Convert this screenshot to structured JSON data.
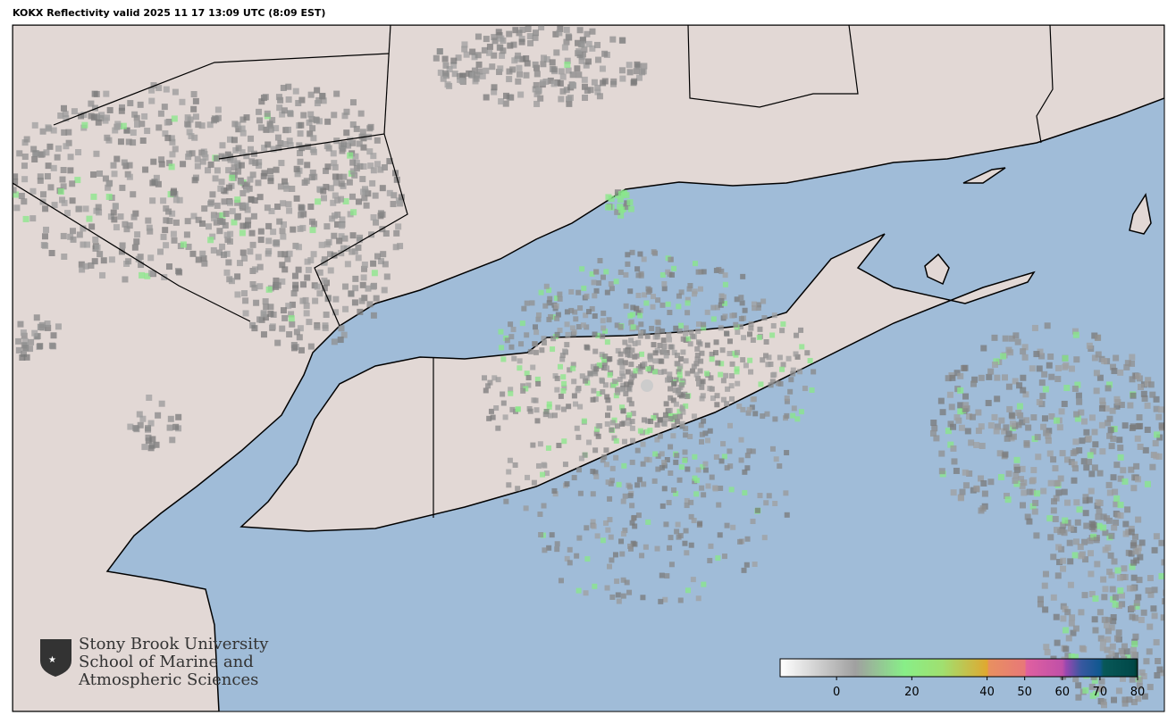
{
  "title": "KOKX Reflectivity valid 2025 11 17 13:09 UTC (8:09 EST)",
  "radar_site": "KOKX",
  "colors": {
    "ocean": "#a0bcd8",
    "land": "#e2d8d5",
    "border": "#000000"
  },
  "logo": {
    "line1": "Stony Brook University",
    "line2": "School of Marine and",
    "line3": "Atmospheric Sciences"
  },
  "colorbar": {
    "min": -15,
    "max": 80,
    "ticks": [
      "0",
      "20",
      "40",
      "50",
      "60",
      "70",
      "80"
    ],
    "tick_values": [
      0,
      20,
      40,
      50,
      60,
      70,
      80
    ],
    "stops": [
      {
        "v": -15,
        "c": "#ffffff"
      },
      {
        "v": 5,
        "c": "#a0a0a0"
      },
      {
        "v": 18,
        "c": "#88ee88"
      },
      {
        "v": 28,
        "c": "#a0e070"
      },
      {
        "v": 40,
        "c": "#e0a830"
      },
      {
        "v": 40.5,
        "c": "#e89060"
      },
      {
        "v": 50,
        "c": "#e87878"
      },
      {
        "v": 50.5,
        "c": "#e060a0"
      },
      {
        "v": 60,
        "c": "#c050a8"
      },
      {
        "v": 61,
        "c": "#9848b0"
      },
      {
        "v": 65,
        "c": "#3858a0"
      },
      {
        "v": 70,
        "c": "#105890"
      },
      {
        "v": 71,
        "c": "#085858"
      },
      {
        "v": 79,
        "c": "#004848"
      },
      {
        "v": 80,
        "c": "#003828"
      }
    ]
  }
}
